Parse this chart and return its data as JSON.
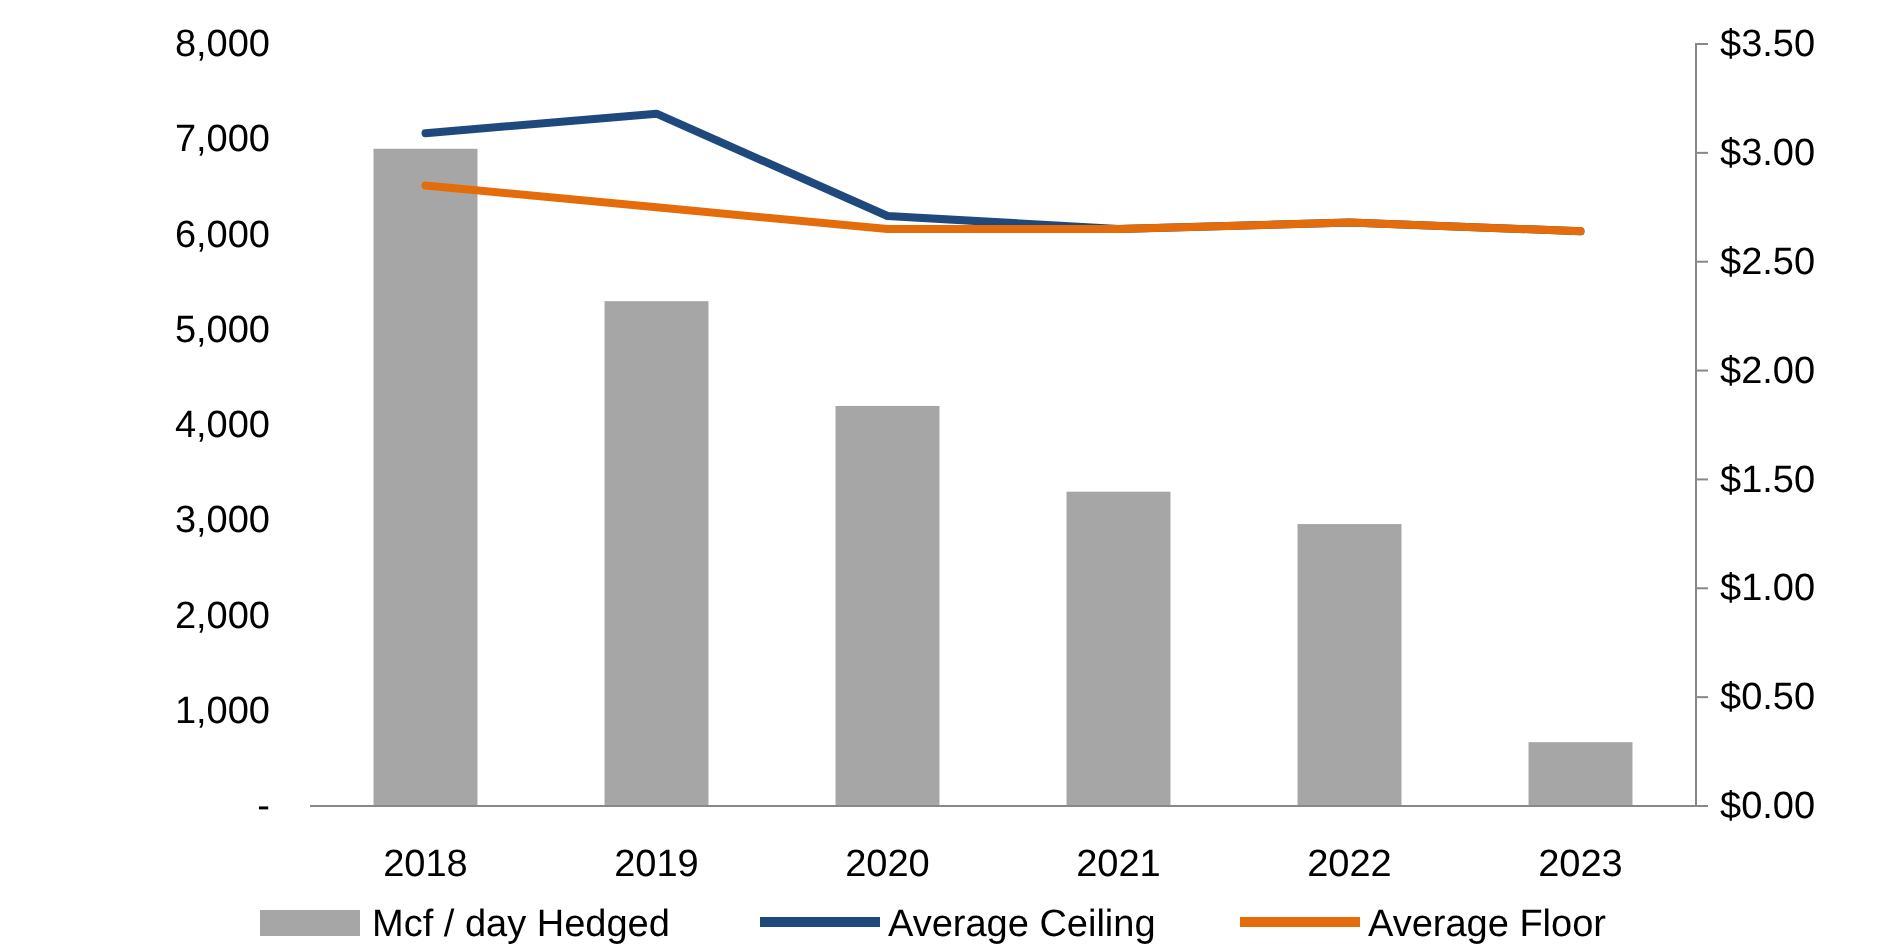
{
  "chart_data": {
    "type": "bar",
    "categories": [
      "2018",
      "2019",
      "2020",
      "2021",
      "2022",
      "2023"
    ],
    "series": [
      {
        "name": "Mcf / day Hedged",
        "color": "#a6a6a6",
        "values": [
          6900,
          5300,
          4200,
          3300,
          2960,
          670
        ]
      },
      {
        "name": "Average Ceiling",
        "type": "line",
        "axis": "y2",
        "color": "#1f497d",
        "values": [
          3.09,
          3.18,
          2.71,
          2.65,
          2.68,
          2.64
        ]
      },
      {
        "name": "Average Floor",
        "type": "line",
        "axis": "y2",
        "color": "#e46c0a",
        "values": [
          2.85,
          2.75,
          2.65,
          2.65,
          2.68,
          2.64
        ]
      }
    ],
    "ylim": [
      0,
      8000
    ],
    "yticks": [
      {
        "value": 0,
        "label": "-"
      },
      {
        "value": 1000,
        "label": "1,000"
      },
      {
        "value": 2000,
        "label": "2,000"
      },
      {
        "value": 3000,
        "label": "3,000"
      },
      {
        "value": 4000,
        "label": "4,000"
      },
      {
        "value": 5000,
        "label": "5,000"
      },
      {
        "value": 6000,
        "label": "6,000"
      },
      {
        "value": 7000,
        "label": "7,000"
      },
      {
        "value": 8000,
        "label": "8,000"
      }
    ],
    "y2lim": [
      0,
      3.5
    ],
    "y2ticks": [
      {
        "value": 0,
        "label": "$0.00"
      },
      {
        "value": 0.5,
        "label": "$0.50"
      },
      {
        "value": 1,
        "label": "$1.00"
      },
      {
        "value": 1.5,
        "label": "$1.50"
      },
      {
        "value": 2,
        "label": "$2.00"
      },
      {
        "value": 2.5,
        "label": "$2.50"
      },
      {
        "value": 3,
        "label": "$3.00"
      },
      {
        "value": 3.5,
        "label": "$3.50"
      }
    ],
    "legend": "bottom",
    "marker": "none",
    "line_style": "solid"
  }
}
